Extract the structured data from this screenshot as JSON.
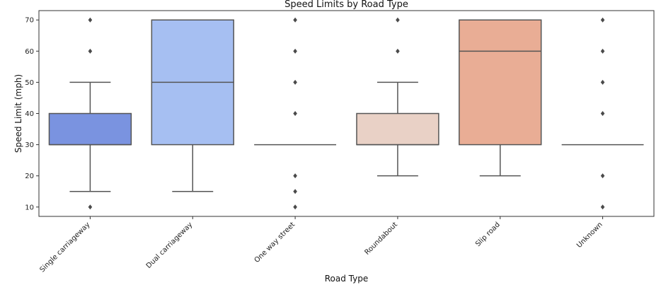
{
  "chart_data": {
    "type": "box",
    "title": "Speed Limits by Road Type",
    "xlabel": "Road Type",
    "ylabel": "Speed Limit (mph)",
    "ylim": [
      7,
      73
    ],
    "yticks": [
      10,
      20,
      30,
      40,
      50,
      60,
      70
    ],
    "grid": false,
    "categories": [
      "Single carriageway",
      "Dual carriageway",
      "One way street",
      "Roundabout",
      "Slip road",
      "Unknown"
    ],
    "boxes": [
      {
        "category": "Single carriageway",
        "whisker_low": 15,
        "q1": 30,
        "median": 30,
        "q3": 40,
        "whisker_high": 50,
        "outliers": [
          10,
          60,
          70
        ],
        "color": "#7a93e0"
      },
      {
        "category": "Dual carriageway",
        "whisker_low": 15,
        "q1": 30,
        "median": 50,
        "q3": 70,
        "whisker_high": 70,
        "outliers": [],
        "color": "#a6bff2"
      },
      {
        "category": "One way street",
        "whisker_low": 30,
        "q1": 30,
        "median": 30,
        "q3": 30,
        "whisker_high": 30,
        "outliers": [
          10,
          15,
          20,
          40,
          50,
          60,
          70
        ],
        "color": "#dcdcdc"
      },
      {
        "category": "Roundabout",
        "whisker_low": 20,
        "q1": 30,
        "median": 30,
        "q3": 40,
        "whisker_high": 50,
        "outliers": [
          60,
          70
        ],
        "color": "#e9d1c6"
      },
      {
        "category": "Slip road",
        "whisker_low": 20,
        "q1": 30,
        "median": 60,
        "q3": 70,
        "whisker_high": 70,
        "outliers": [],
        "color": "#e9ad95"
      },
      {
        "category": "Unknown",
        "whisker_low": 30,
        "q1": 30,
        "median": 30,
        "q3": 30,
        "whisker_high": 30,
        "outliers": [
          10,
          20,
          40,
          50,
          60,
          70
        ],
        "color": "#dcdcdc"
      }
    ],
    "line_color": "#555555"
  }
}
